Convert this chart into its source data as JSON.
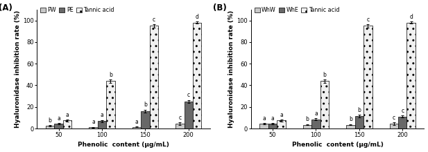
{
  "panel_A": {
    "label": "(A)",
    "legend_labels": [
      "PW",
      "PE",
      "Tannic acid"
    ],
    "x_labels": [
      "50",
      "100",
      "150",
      "200"
    ],
    "bar_values": {
      "PW": [
        2.5,
        1.0,
        1.5,
        4.5
      ],
      "PE": [
        4.5,
        7.0,
        16.0,
        25.0
      ],
      "Tannic acid": [
        7.5,
        44.0,
        95.0,
        98.0
      ]
    },
    "bar_errors": {
      "PW": [
        0.5,
        0.5,
        0.5,
        1.0
      ],
      "PE": [
        0.5,
        1.0,
        1.5,
        1.5
      ],
      "Tannic acid": [
        0.8,
        1.5,
        1.5,
        1.0
      ]
    },
    "sig_labels": {
      "PW": [
        "b",
        "a",
        "a",
        "c"
      ],
      "PE": [
        "a",
        "a",
        "b",
        "c"
      ],
      "Tannic acid": [
        "a",
        "b",
        "c",
        "d"
      ]
    }
  },
  "panel_B": {
    "label": "(B)",
    "legend_labels": [
      "WhW",
      "WhE",
      "Tannic acid"
    ],
    "x_labels": [
      "50",
      "100",
      "150",
      "200"
    ],
    "bar_values": {
      "WhW": [
        4.5,
        3.5,
        3.5,
        4.5
      ],
      "WhE": [
        4.5,
        8.5,
        11.5,
        11.0
      ],
      "Tannic acid": [
        7.5,
        44.0,
        95.0,
        98.0
      ]
    },
    "bar_errors": {
      "WhW": [
        0.5,
        0.5,
        0.5,
        1.0
      ],
      "WhE": [
        0.5,
        1.0,
        1.0,
        1.0
      ],
      "Tannic acid": [
        0.8,
        1.5,
        1.5,
        1.0
      ]
    },
    "sig_labels": {
      "WhW": [
        "a",
        "b",
        "b",
        "c"
      ],
      "WhE": [
        "a",
        "a",
        "b",
        "c"
      ],
      "Tannic acid": [
        "a",
        "b",
        "c",
        "d"
      ]
    }
  },
  "bar_colors": [
    "#c8c8c8",
    "#686868",
    "#f0f0f0"
  ],
  "bar_hatches": [
    null,
    null,
    ".."
  ],
  "ylim": [
    0,
    110
  ],
  "yticks": [
    0,
    20,
    40,
    60,
    80,
    100
  ],
  "ylabel": "Hyaluronidase inhibition rate (%)",
  "xlabel": "Phenolic  content (μg/mL)",
  "bar_width": 0.2,
  "sig_fontsize": 5.5,
  "axis_fontsize": 6.5,
  "tick_fontsize": 6.0,
  "legend_fontsize": 5.8,
  "label_fontsize": 8.5,
  "background_color": "#ffffff"
}
